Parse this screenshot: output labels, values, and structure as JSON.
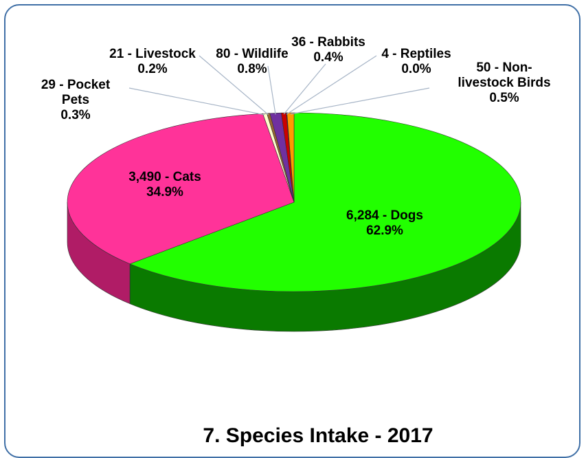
{
  "chart_data": {
    "type": "pie",
    "title": "7. Species Intake - 2017",
    "slices": [
      {
        "name": "Dogs",
        "value": 6284,
        "label_value": "6,284 - Dogs",
        "label_percent": "62.9%",
        "color": "#22ff00",
        "dark": "#0a7a00"
      },
      {
        "name": "Cats",
        "value": 3490,
        "label_value": "3,490 - Cats",
        "label_percent": "34.9%",
        "color": "#ff3399",
        "dark": "#b01c66"
      },
      {
        "name": "Pocket Pets",
        "value": 29,
        "label_value": "29 - Pocket",
        "label_value2": "Pets",
        "label_percent": "0.3%",
        "color": "#ffffcc",
        "dark": "#b3b38f"
      },
      {
        "name": "Livestock",
        "value": 21,
        "label_value": "21 - Livestock",
        "label_percent": "0.2%",
        "color": "#996633",
        "dark": "#5c3d1f"
      },
      {
        "name": "Wildlife",
        "value": 80,
        "label_value": "80 - Wildlife",
        "label_percent": "0.8%",
        "color": "#7030a0",
        "dark": "#3d1a58"
      },
      {
        "name": "Rabbits",
        "value": 36,
        "label_value": "36 - Rabbits",
        "label_percent": "0.4%",
        "color": "#cc0000",
        "dark": "#7a0000"
      },
      {
        "name": "Reptiles",
        "value": 4,
        "label_value": "4 - Reptiles",
        "label_percent": "0.0%",
        "color": "#0000cc",
        "dark": "#00007a"
      },
      {
        "name": "Non-livestock Birds",
        "value": 50,
        "label_value": "50 - Non-",
        "label_value2": "livestock Birds",
        "label_percent": "0.5%",
        "color": "#ff9900",
        "dark": "#a86500"
      }
    ]
  }
}
